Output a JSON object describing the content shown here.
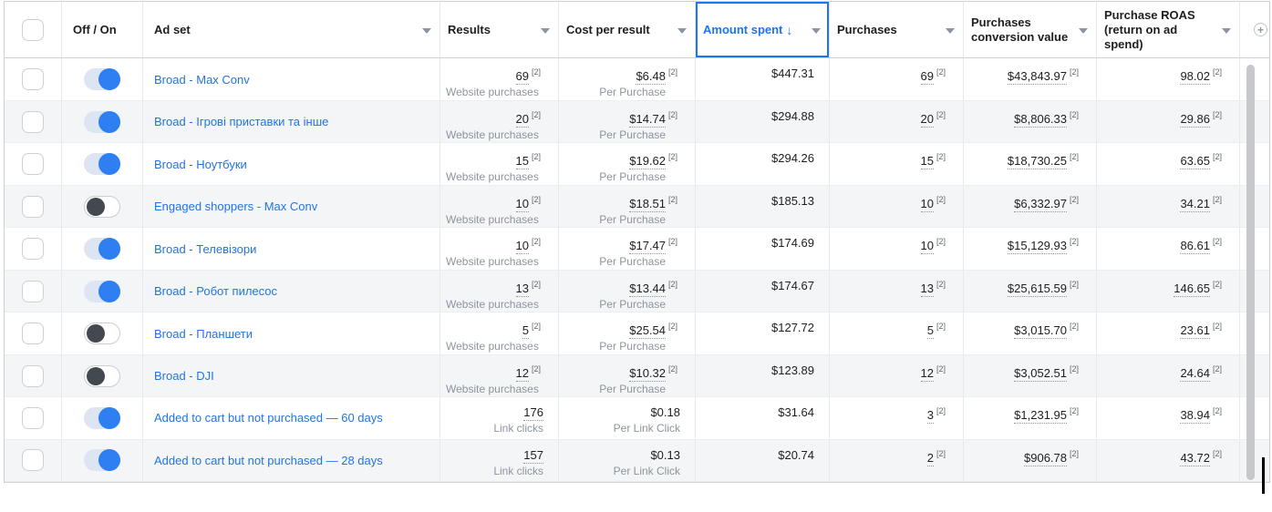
{
  "header": {
    "off_on_label": "Off / On",
    "ad_set_label": "Ad set",
    "results_label": "Results",
    "cost_label": "Cost per result",
    "amount_spent_label": "Amount spent",
    "sort_arrow": "↓",
    "purchases_label": "Purchases",
    "conv_value_label": "Purchases conversion value",
    "roas_label": "Purchase ROAS (return on ad spend)",
    "add_column_icon": "+",
    "sorted_column": "Amount spent",
    "sort_direction": "descending"
  },
  "colors": {
    "accent_blue": "#1877f2",
    "link_blue": "#2374e1",
    "toggle_on_knob": "#2d7ff2",
    "toggle_off_knob": "#44494f",
    "zebra_row": "#f4f5f7",
    "sub_text": "#8d949e"
  },
  "rows": [
    {
      "name": "Broad - Max Conv",
      "toggle_on": true,
      "checked": false,
      "results": {
        "value": "69",
        "ref": "[2]",
        "sub": "Website purchases",
        "underline": true
      },
      "cost": {
        "value": "$6.48",
        "ref": "[2]",
        "sub": "Per Purchase",
        "underline": true
      },
      "spent": {
        "value": "$447.31"
      },
      "purchases": {
        "value": "69",
        "ref": "[2]",
        "underline": true
      },
      "conv": {
        "value": "$43,843.97",
        "ref": "[2]",
        "underline": true
      },
      "roas": {
        "value": "98.02",
        "ref": "[2]",
        "underline": true
      }
    },
    {
      "name": "Broad - Ігрові приставки та інше",
      "toggle_on": true,
      "checked": false,
      "results": {
        "value": "20",
        "ref": "[2]",
        "sub": "Website purchases",
        "underline": true
      },
      "cost": {
        "value": "$14.74",
        "ref": "[2]",
        "sub": "Per Purchase",
        "underline": true
      },
      "spent": {
        "value": "$294.88"
      },
      "purchases": {
        "value": "20",
        "ref": "[2]",
        "underline": true
      },
      "conv": {
        "value": "$8,806.33",
        "ref": "[2]",
        "underline": true
      },
      "roas": {
        "value": "29.86",
        "ref": "[2]",
        "underline": true
      }
    },
    {
      "name": "Broad - Ноутбуки",
      "toggle_on": true,
      "checked": false,
      "results": {
        "value": "15",
        "ref": "[2]",
        "sub": "Website purchases",
        "underline": true
      },
      "cost": {
        "value": "$19.62",
        "ref": "[2]",
        "sub": "Per Purchase",
        "underline": true
      },
      "spent": {
        "value": "$294.26"
      },
      "purchases": {
        "value": "15",
        "ref": "[2]",
        "underline": true
      },
      "conv": {
        "value": "$18,730.25",
        "ref": "[2]",
        "underline": true
      },
      "roas": {
        "value": "63.65",
        "ref": "[2]",
        "underline": true
      }
    },
    {
      "name": "Engaged shoppers - Max Conv",
      "toggle_on": false,
      "checked": false,
      "results": {
        "value": "10",
        "ref": "[2]",
        "sub": "Website purchases",
        "underline": true
      },
      "cost": {
        "value": "$18.51",
        "ref": "[2]",
        "sub": "Per Purchase",
        "underline": true
      },
      "spent": {
        "value": "$185.13"
      },
      "purchases": {
        "value": "10",
        "ref": "[2]",
        "underline": true
      },
      "conv": {
        "value": "$6,332.97",
        "ref": "[2]",
        "underline": true
      },
      "roas": {
        "value": "34.21",
        "ref": "[2]",
        "underline": true
      }
    },
    {
      "name": "Broad - Телевізори",
      "toggle_on": true,
      "checked": false,
      "results": {
        "value": "10",
        "ref": "[2]",
        "sub": "Website purchases",
        "underline": true
      },
      "cost": {
        "value": "$17.47",
        "ref": "[2]",
        "sub": "Per Purchase",
        "underline": true
      },
      "spent": {
        "value": "$174.69"
      },
      "purchases": {
        "value": "10",
        "ref": "[2]",
        "underline": true
      },
      "conv": {
        "value": "$15,129.93",
        "ref": "[2]",
        "underline": true
      },
      "roas": {
        "value": "86.61",
        "ref": "[2]",
        "underline": true
      }
    },
    {
      "name": "Broad - Робот пилесос",
      "toggle_on": true,
      "checked": false,
      "results": {
        "value": "13",
        "ref": "[2]",
        "sub": "Website purchases",
        "underline": true
      },
      "cost": {
        "value": "$13.44",
        "ref": "[2]",
        "sub": "Per Purchase",
        "underline": true
      },
      "spent": {
        "value": "$174.67"
      },
      "purchases": {
        "value": "13",
        "ref": "[2]",
        "underline": true
      },
      "conv": {
        "value": "$25,615.59",
        "ref": "[2]",
        "underline": true
      },
      "roas": {
        "value": "146.65",
        "ref": "[2]",
        "underline": true
      }
    },
    {
      "name": "Broad - Планшети",
      "toggle_on": false,
      "checked": false,
      "results": {
        "value": "5",
        "ref": "[2]",
        "sub": "Website purchases",
        "underline": true
      },
      "cost": {
        "value": "$25.54",
        "ref": "[2]",
        "sub": "Per Purchase",
        "underline": true
      },
      "spent": {
        "value": "$127.72"
      },
      "purchases": {
        "value": "5",
        "ref": "[2]",
        "underline": true
      },
      "conv": {
        "value": "$3,015.70",
        "ref": "[2]",
        "underline": true
      },
      "roas": {
        "value": "23.61",
        "ref": "[2]",
        "underline": true
      }
    },
    {
      "name": "Broad - DJI",
      "toggle_on": false,
      "checked": false,
      "results": {
        "value": "12",
        "ref": "[2]",
        "sub": "Website purchases",
        "underline": true
      },
      "cost": {
        "value": "$10.32",
        "ref": "[2]",
        "sub": "Per Purchase",
        "underline": true
      },
      "spent": {
        "value": "$123.89"
      },
      "purchases": {
        "value": "12",
        "ref": "[2]",
        "underline": true
      },
      "conv": {
        "value": "$3,052.51",
        "ref": "[2]",
        "underline": true
      },
      "roas": {
        "value": "24.64",
        "ref": "[2]",
        "underline": true
      }
    },
    {
      "name": "Added to cart but not purchased — 60 days",
      "toggle_on": true,
      "checked": false,
      "results": {
        "value": "176",
        "ref": null,
        "sub": "Link clicks",
        "underline": true
      },
      "cost": {
        "value": "$0.18",
        "ref": null,
        "sub": "Per Link Click",
        "underline": false
      },
      "spent": {
        "value": "$31.64"
      },
      "purchases": {
        "value": "3",
        "ref": "[2]",
        "underline": true
      },
      "conv": {
        "value": "$1,231.95",
        "ref": "[2]",
        "underline": true
      },
      "roas": {
        "value": "38.94",
        "ref": "[2]",
        "underline": true
      }
    },
    {
      "name": "Added to cart but not purchased — 28 days",
      "toggle_on": true,
      "checked": false,
      "results": {
        "value": "157",
        "ref": null,
        "sub": "Link clicks",
        "underline": true
      },
      "cost": {
        "value": "$0.13",
        "ref": null,
        "sub": "Per Link Click",
        "underline": false
      },
      "spent": {
        "value": "$20.74"
      },
      "purchases": {
        "value": "2",
        "ref": "[2]",
        "underline": true
      },
      "conv": {
        "value": "$906.78",
        "ref": "[2]",
        "underline": true
      },
      "roas": {
        "value": "43.72",
        "ref": "[2]",
        "underline": true
      }
    }
  ]
}
